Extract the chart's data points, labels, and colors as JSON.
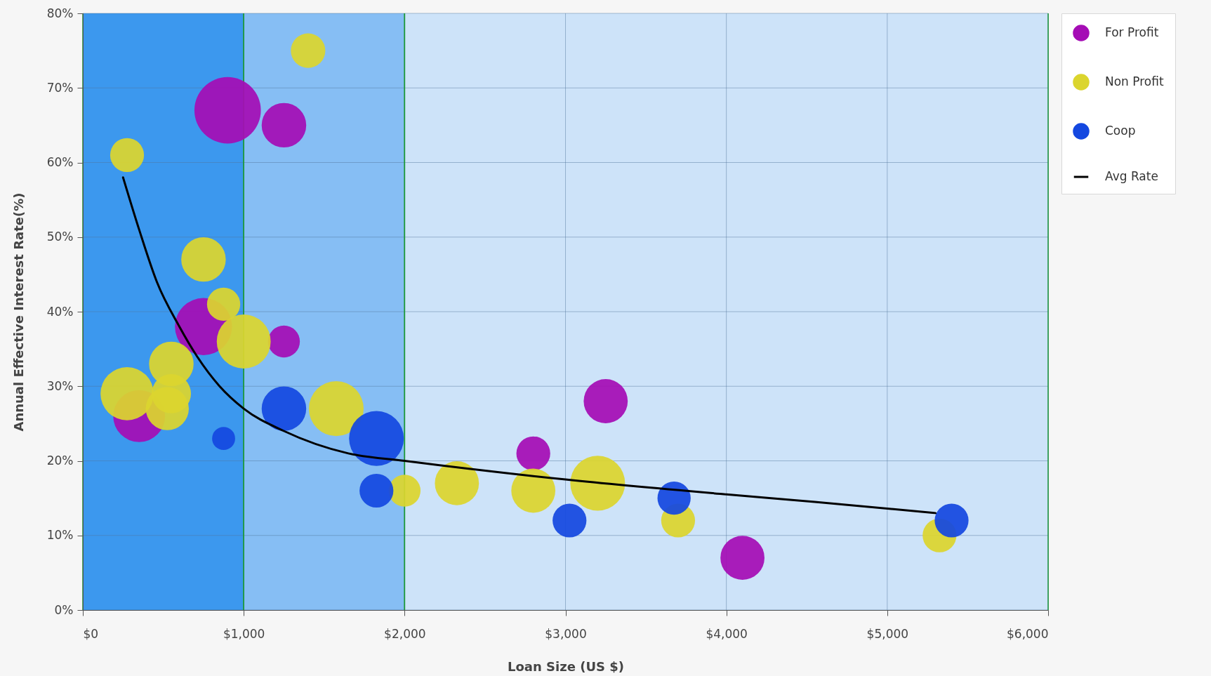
{
  "chart_data": {
    "type": "bubble",
    "xlabel": "Loan Size (US $)",
    "ylabel": "Annual Effective Interest Rate(%)",
    "xlim": [
      0,
      6000
    ],
    "ylim": [
      0,
      80
    ],
    "xticks": [
      {
        "value": 0,
        "label": "$0"
      },
      {
        "value": 1000,
        "label": "$1,000"
      },
      {
        "value": 2000,
        "label": "$2,000"
      },
      {
        "value": 3000,
        "label": "$3,000"
      },
      {
        "value": 4000,
        "label": "$4,000"
      },
      {
        "value": 5000,
        "label": "$5,000"
      },
      {
        "value": 6000,
        "label": "$6,000"
      }
    ],
    "yticks": [
      {
        "value": 0,
        "label": "0%"
      },
      {
        "value": 10,
        "label": "10%"
      },
      {
        "value": 20,
        "label": "20%"
      },
      {
        "value": 30,
        "label": "30%"
      },
      {
        "value": 40,
        "label": "40%"
      },
      {
        "value": 50,
        "label": "50%"
      },
      {
        "value": 60,
        "label": "60%"
      },
      {
        "value": 70,
        "label": "70%"
      },
      {
        "value": 80,
        "label": "80%"
      }
    ],
    "grid": true,
    "legend": "top right",
    "bands": [
      {
        "axis": "x",
        "from": 0,
        "to": 1000,
        "color": "#3c98ee"
      },
      {
        "axis": "x",
        "from": 1000,
        "to": 2000,
        "color": "#86bef4"
      },
      {
        "axis": "x",
        "from": 2000,
        "to": 6000,
        "color": "#cde3f9"
      }
    ],
    "series": [
      {
        "name": "For Profit",
        "color": "#a50db5",
        "x": [
          900,
          1250,
          750,
          1250,
          350,
          3250,
          2800,
          4100
        ],
        "values": [
          67,
          65,
          38,
          36,
          26,
          28,
          21,
          7
        ],
        "sizes": [
          1,
          0.45,
          0.74,
          0.23,
          0.61,
          0.44,
          0.26,
          0.44
        ]
      },
      {
        "name": "Non Profit",
        "color": "#dbd52e",
        "x": [
          1400,
          275,
          750,
          875,
          1000,
          525,
          550,
          275,
          550,
          1575,
          2000,
          2325,
          2800,
          3200,
          3700,
          5325
        ],
        "values": [
          75,
          61,
          47,
          41,
          36,
          27,
          33,
          29,
          29,
          27,
          16,
          17,
          16,
          17,
          12,
          10
        ],
        "sizes": [
          0.27,
          0.26,
          0.45,
          0.25,
          0.66,
          0.42,
          0.45,
          0.64,
          0.35,
          0.68,
          0.23,
          0.44,
          0.44,
          0.68,
          0.26,
          0.26
        ]
      },
      {
        "name": "Coop",
        "color": "#1448e0",
        "x": [
          875,
          1250,
          1825,
          1825,
          3025,
          3675,
          5400
        ],
        "values": [
          23,
          27,
          23,
          16,
          12,
          15,
          12
        ],
        "sizes": [
          0.12,
          0.45,
          0.68,
          0.26,
          0.26,
          0.25,
          0.26
        ]
      },
      {
        "name": "Avg Rate",
        "type": "line",
        "line_style": "solid",
        "color": "#000000",
        "x": [
          250,
          350,
          460,
          600,
          710,
          850,
          1000,
          1250,
          1650,
          2000,
          3000,
          4000,
          4550,
          5300
        ],
        "values": [
          58,
          51,
          44,
          38,
          34,
          30,
          27,
          24,
          21,
          20,
          17.5,
          15.5,
          14.5,
          13
        ]
      }
    ]
  }
}
